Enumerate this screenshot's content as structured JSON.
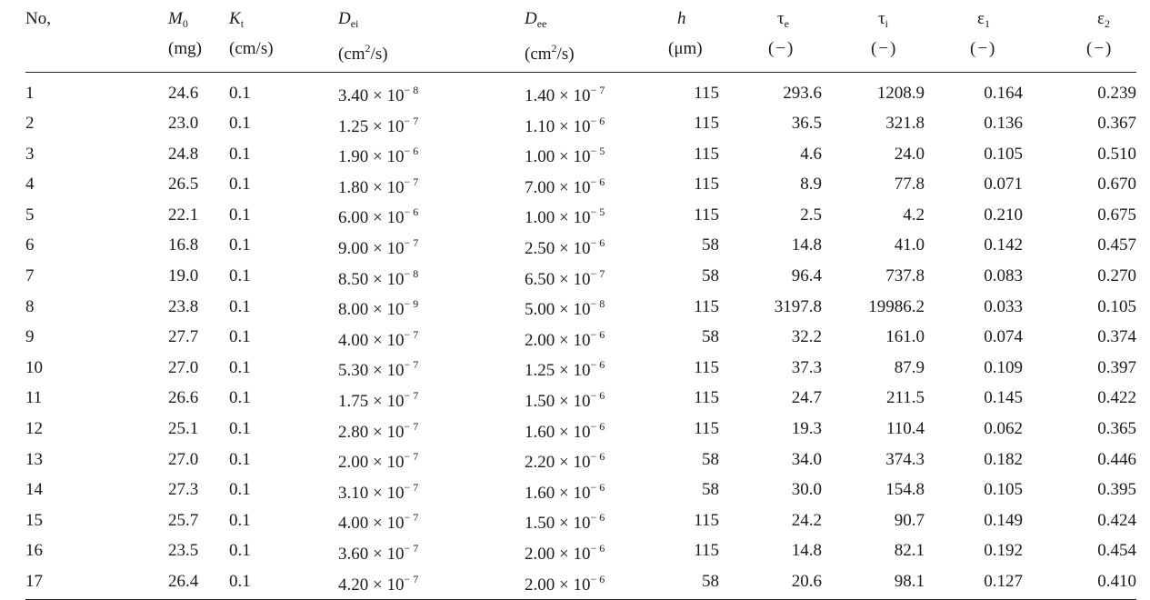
{
  "table": {
    "headers": [
      {
        "symbol": "No,",
        "sub": "",
        "unit": ""
      },
      {
        "symbol": "M",
        "sub": "0",
        "unit": "(mg)"
      },
      {
        "symbol": "K",
        "sub": "t",
        "unit": "(cm/s)"
      },
      {
        "symbol": "D",
        "sub": "ei",
        "unit_pre": "(cm",
        "unit_sup": "2",
        "unit_post": "/s)"
      },
      {
        "symbol": "D",
        "sub": "ee",
        "unit_pre": "(cm",
        "unit_sup": "2",
        "unit_post": "/s)"
      },
      {
        "symbol": "h",
        "sub": "",
        "unit": "(μm)"
      },
      {
        "symbol": "τ",
        "sub": "e",
        "unit": "(−)"
      },
      {
        "symbol": "τ",
        "sub": "i",
        "unit": "(−)"
      },
      {
        "symbol": "ε",
        "sub": "1",
        "unit": "(−)"
      },
      {
        "symbol": "ε",
        "sub": "2",
        "unit": "(−)"
      }
    ],
    "rows": [
      {
        "no": "1",
        "m0": "24.6",
        "kt": "0.1",
        "dei_m": "3.40 × 10",
        "dei_e": "− 8",
        "dee_m": "1.40 × 10",
        "dee_e": "− 7",
        "h": "115",
        "te": "293.6",
        "ti": "1208.9",
        "e1": "0.164",
        "e2": "0.239"
      },
      {
        "no": "2",
        "m0": "23.0",
        "kt": "0.1",
        "dei_m": "1.25 × 10",
        "dei_e": "− 7",
        "dee_m": "1.10 × 10",
        "dee_e": "− 6",
        "h": "115",
        "te": "36.5",
        "ti": "321.8",
        "e1": "0.136",
        "e2": "0.367"
      },
      {
        "no": "3",
        "m0": "24.8",
        "kt": "0.1",
        "dei_m": "1.90 × 10",
        "dei_e": "− 6",
        "dee_m": "1.00 × 10",
        "dee_e": "− 5",
        "h": "115",
        "te": "4.6",
        "ti": "24.0",
        "e1": "0.105",
        "e2": "0.510"
      },
      {
        "no": "4",
        "m0": "26.5",
        "kt": "0.1",
        "dei_m": "1.80 × 10",
        "dei_e": "− 7",
        "dee_m": "7.00 × 10",
        "dee_e": "− 6",
        "h": "115",
        "te": "8.9",
        "ti": "77.8",
        "e1": "0.071",
        "e2": "0.670"
      },
      {
        "no": "5",
        "m0": "22.1",
        "kt": "0.1",
        "dei_m": "6.00 × 10",
        "dei_e": "− 6",
        "dee_m": "1.00 × 10",
        "dee_e": "− 5",
        "h": "115",
        "te": "2.5",
        "ti": "4.2",
        "e1": "0.210",
        "e2": "0.675"
      },
      {
        "no": "6",
        "m0": "16.8",
        "kt": "0.1",
        "dei_m": "9.00 × 10",
        "dei_e": "− 7",
        "dee_m": "2.50 × 10",
        "dee_e": "− 6",
        "h": "58",
        "te": "14.8",
        "ti": "41.0",
        "e1": "0.142",
        "e2": "0.457"
      },
      {
        "no": "7",
        "m0": "19.0",
        "kt": "0.1",
        "dei_m": "8.50 × 10",
        "dei_e": "− 8",
        "dee_m": "6.50 × 10",
        "dee_e": "− 7",
        "h": "58",
        "te": "96.4",
        "ti": "737.8",
        "e1": "0.083",
        "e2": "0.270"
      },
      {
        "no": "8",
        "m0": "23.8",
        "kt": "0.1",
        "dei_m": "8.00 × 10",
        "dei_e": "− 9",
        "dee_m": "5.00 × 10",
        "dee_e": "− 8",
        "h": "115",
        "te": "3197.8",
        "ti": "19986.2",
        "e1": "0.033",
        "e2": "0.105"
      },
      {
        "no": "9",
        "m0": "27.7",
        "kt": "0.1",
        "dei_m": "4.00 × 10",
        "dei_e": "− 7",
        "dee_m": "2.00 × 10",
        "dee_e": "− 6",
        "h": "58",
        "te": "32.2",
        "ti": "161.0",
        "e1": "0.074",
        "e2": "0.374"
      },
      {
        "no": "10",
        "m0": "27.0",
        "kt": "0.1",
        "dei_m": "5.30 × 10",
        "dei_e": "− 7",
        "dee_m": "1.25 × 10",
        "dee_e": "− 6",
        "h": "115",
        "te": "37.3",
        "ti": "87.9",
        "e1": "0.109",
        "e2": "0.397"
      },
      {
        "no": "11",
        "m0": "26.6",
        "kt": "0.1",
        "dei_m": "1.75 × 10",
        "dei_e": "− 7",
        "dee_m": "1.50 × 10",
        "dee_e": "− 6",
        "h": "115",
        "te": "24.7",
        "ti": "211.5",
        "e1": "0.145",
        "e2": "0.422"
      },
      {
        "no": "12",
        "m0": "25.1",
        "kt": "0.1",
        "dei_m": "2.80 × 10",
        "dei_e": "− 7",
        "dee_m": "1.60 × 10",
        "dee_e": "− 6",
        "h": "115",
        "te": "19.3",
        "ti": "110.4",
        "e1": "0.062",
        "e2": "0.365"
      },
      {
        "no": "13",
        "m0": "27.0",
        "kt": "0.1",
        "dei_m": "2.00 × 10",
        "dei_e": "− 7",
        "dee_m": "2.20 × 10",
        "dee_e": "− 6",
        "h": "58",
        "te": "34.0",
        "ti": "374.3",
        "e1": "0.182",
        "e2": "0.446"
      },
      {
        "no": "14",
        "m0": "27.3",
        "kt": "0.1",
        "dei_m": "3.10 × 10",
        "dei_e": "− 7",
        "dee_m": "1.60 × 10",
        "dee_e": "− 6",
        "h": "58",
        "te": "30.0",
        "ti": "154.8",
        "e1": "0.105",
        "e2": "0.395"
      },
      {
        "no": "15",
        "m0": "25.7",
        "kt": "0.1",
        "dei_m": "4.00 × 10",
        "dei_e": "− 7",
        "dee_m": "1.50 × 10",
        "dee_e": "− 6",
        "h": "115",
        "te": "24.2",
        "ti": "90.7",
        "e1": "0.149",
        "e2": "0.424"
      },
      {
        "no": "16",
        "m0": "23.5",
        "kt": "0.1",
        "dei_m": "3.60 × 10",
        "dei_e": "− 7",
        "dee_m": "2.00 × 10",
        "dee_e": "− 6",
        "h": "115",
        "te": "14.8",
        "ti": "82.1",
        "e1": "0.192",
        "e2": "0.454"
      },
      {
        "no": "17",
        "m0": "26.4",
        "kt": "0.1",
        "dei_m": "4.20 × 10",
        "dei_e": "− 7",
        "dee_m": "2.00 × 10",
        "dee_e": "− 6",
        "h": "58",
        "te": "20.6",
        "ti": "98.1",
        "e1": "0.127",
        "e2": "0.410"
      }
    ]
  }
}
